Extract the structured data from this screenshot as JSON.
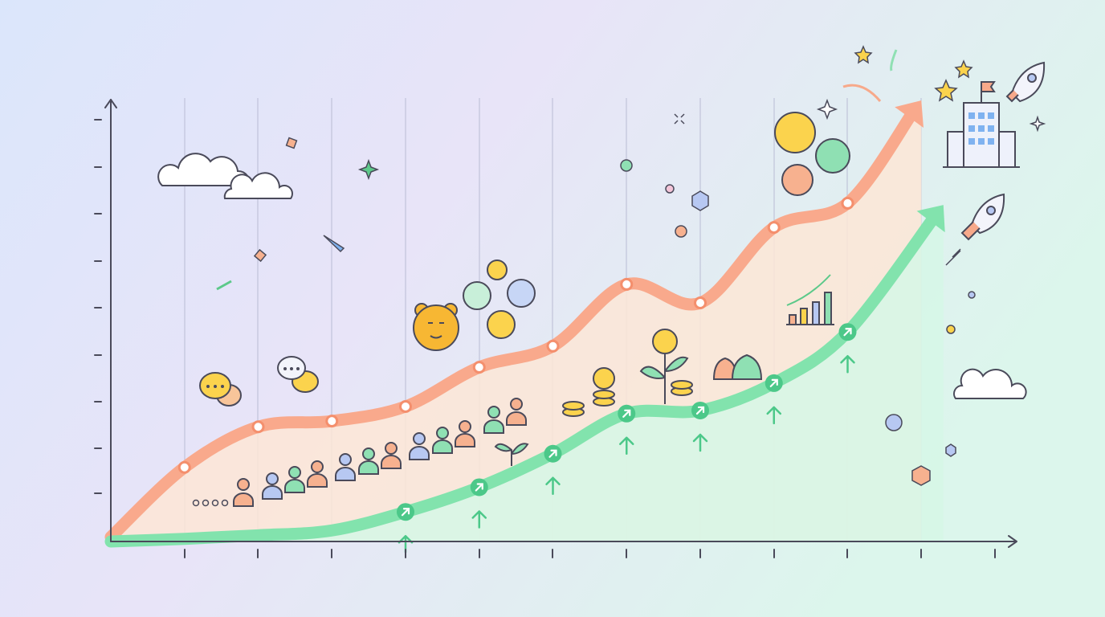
{
  "chart_data": {
    "type": "line",
    "xlim": [
      0,
      12
    ],
    "ylim": [
      0,
      100
    ],
    "series": [
      {
        "color": "#f9a98c",
        "fill": "#fde6d6",
        "x": [
          0,
          1,
          2,
          3,
          4,
          5,
          6,
          7,
          8,
          9,
          10,
          11
        ],
        "values": [
          1,
          16.8,
          26.0,
          27.3,
          30.6,
          39.5,
          44.3,
          58.3,
          54.1,
          71.2,
          76.7,
          100
        ]
      },
      {
        "color": "#82e3ad",
        "fill": "#d6f7e6",
        "x": [
          0,
          1,
          2,
          3,
          4,
          5,
          6,
          7,
          8,
          9,
          10,
          11.3
        ],
        "values": [
          0,
          0.6,
          1.4,
          2.5,
          6.7,
          12.3,
          19.9,
          29.0,
          29.7,
          35.9,
          47.5,
          76.3
        ]
      }
    ]
  }
}
